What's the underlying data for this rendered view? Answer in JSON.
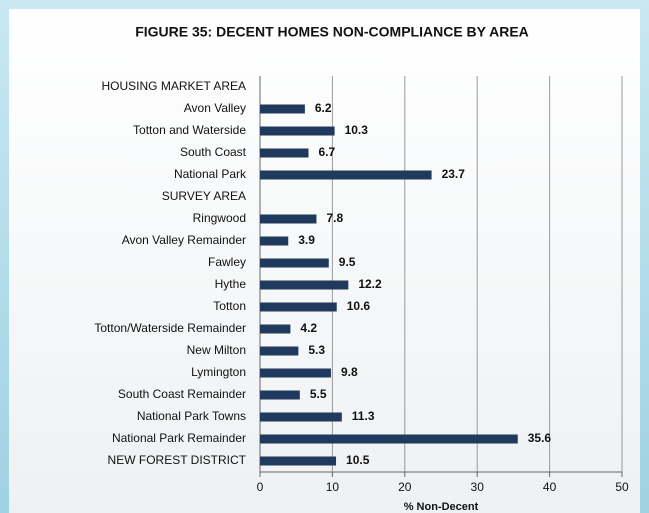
{
  "chart_data": {
    "type": "barh",
    "title": "FIGURE 35: DECENT HOMES NON-COMPLIANCE BY AREA",
    "x_label": "% Non-Decent",
    "categories": [
      "HOUSING MARKET AREA",
      "Avon Valley",
      "Totton and Waterside",
      "South Coast",
      "National Park",
      "SURVEY AREA",
      "Ringwood",
      "Avon Valley Remainder",
      "Fawley",
      "Hythe",
      "Totton",
      "Totton/Waterside Remainder",
      "New Milton",
      "Lymington",
      "South Coast Remainder",
      "National Park Towns",
      "National Park Remainder",
      "NEW FOREST DISTRICT"
    ],
    "values": [
      null,
      6.2,
      10.3,
      6.7,
      23.7,
      null,
      7.8,
      3.9,
      9.5,
      12.2,
      10.6,
      4.2,
      5.3,
      9.8,
      5.5,
      11.3,
      35.6,
      10.5
    ],
    "color": "#1f3a5c",
    "xlim": [
      0,
      50
    ],
    "xticks": [
      0,
      10,
      20,
      30,
      40,
      50
    ],
    "grid": true
  }
}
